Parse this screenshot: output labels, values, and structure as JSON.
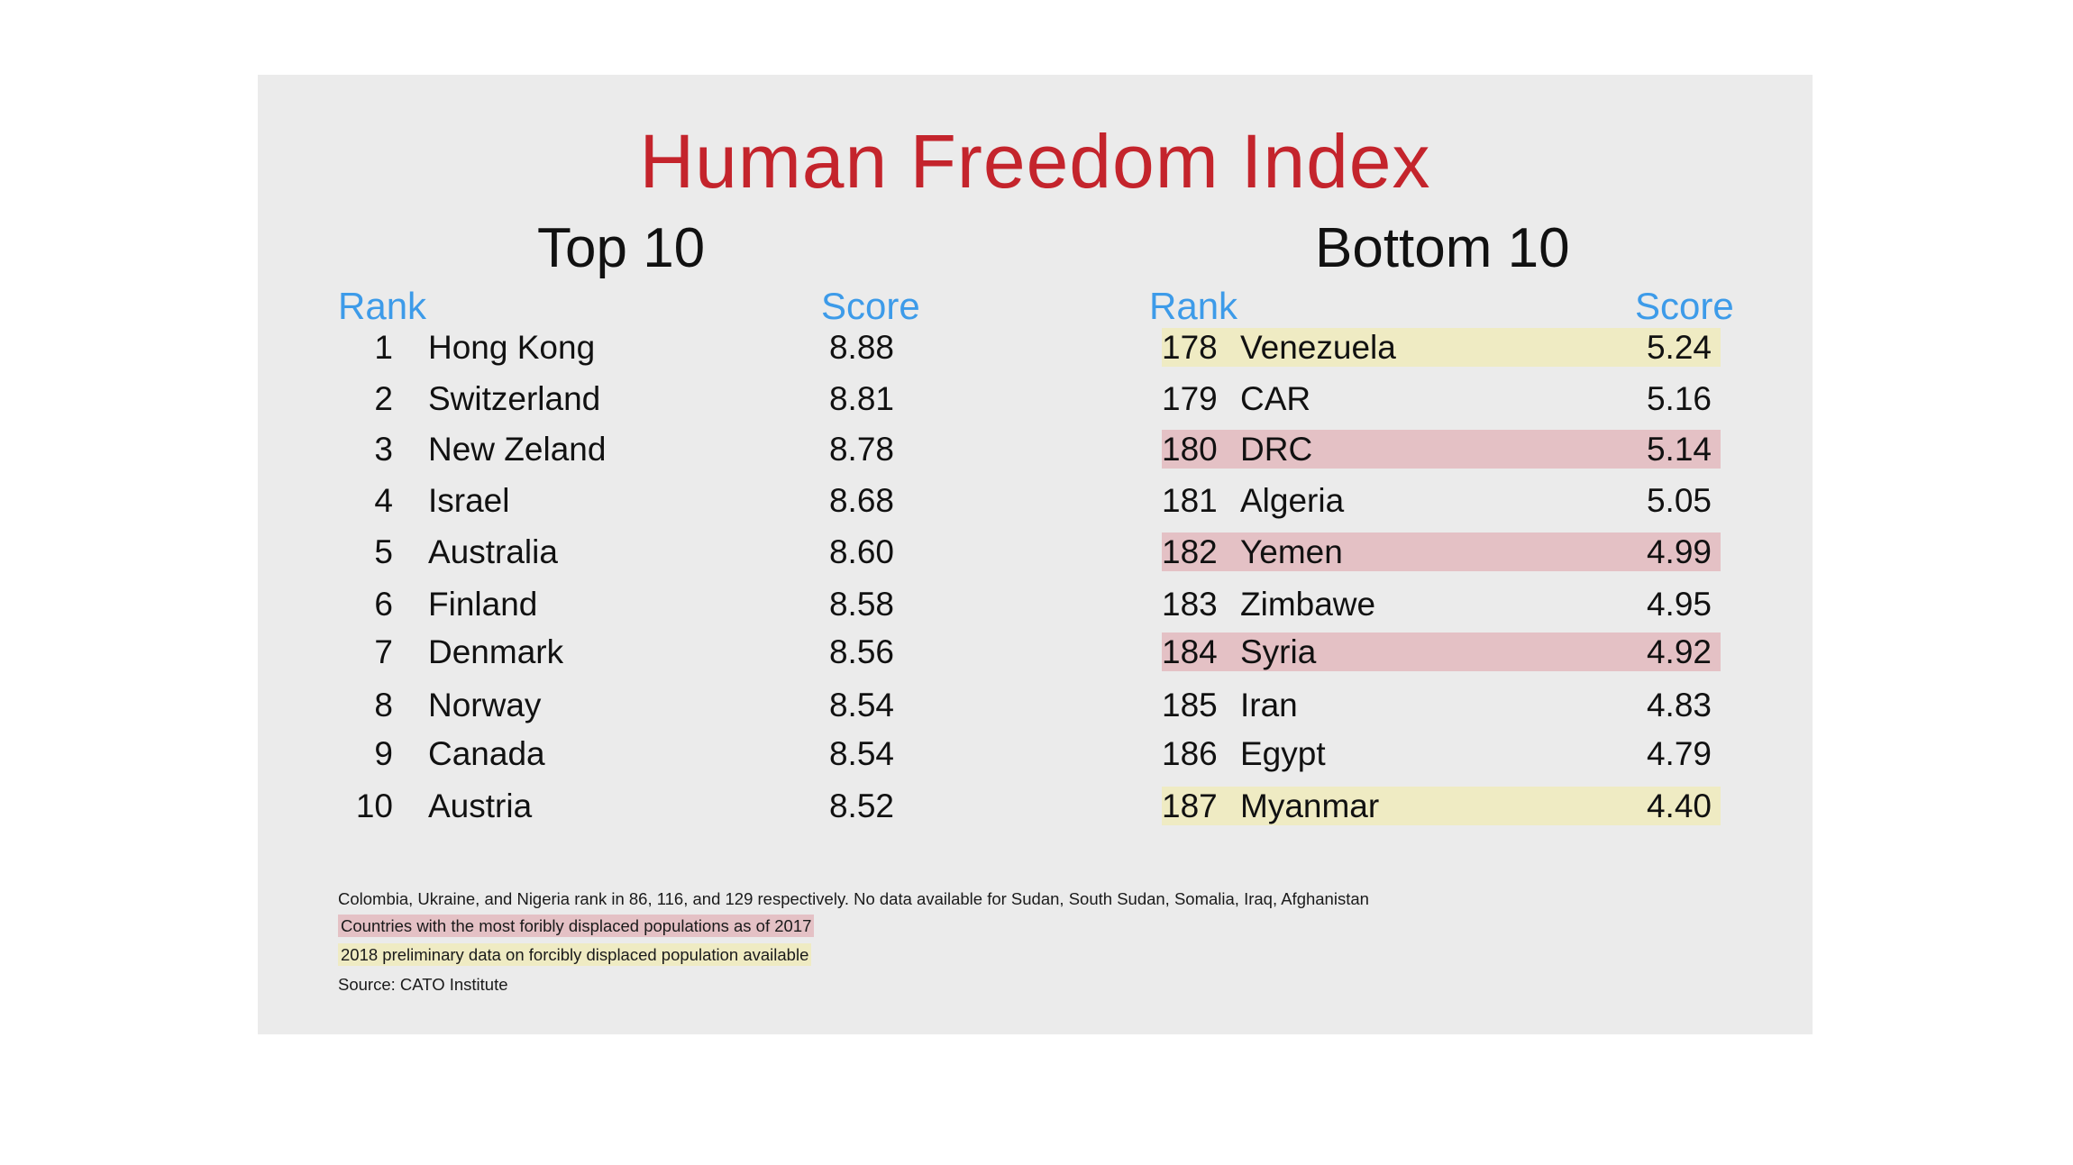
{
  "title": "Human Freedom Index",
  "top": {
    "heading": "Top 10",
    "rank_label": "Rank",
    "score_label": "Score",
    "rows": [
      {
        "rank": "1",
        "country": "Hong Kong",
        "score": "8.88"
      },
      {
        "rank": "2",
        "country": "Switzerland",
        "score": "8.81"
      },
      {
        "rank": "3",
        "country": "New Zeland",
        "score": "8.78"
      },
      {
        "rank": "4",
        "country": "Israel",
        "score": "8.68"
      },
      {
        "rank": "5",
        "country": "Australia",
        "score": "8.60"
      },
      {
        "rank": "6",
        "country": "Finland",
        "score": "8.58"
      },
      {
        "rank": "7",
        "country": "Denmark",
        "score": "8.56"
      },
      {
        "rank": "8",
        "country": "Norway",
        "score": "8.54"
      },
      {
        "rank": "9",
        "country": "Canada",
        "score": "8.54"
      },
      {
        "rank": "10",
        "country": "Austria",
        "score": "8.52"
      }
    ]
  },
  "bottom": {
    "heading": "Bottom 10",
    "rank_label": "Rank",
    "score_label": "Score",
    "rows": [
      {
        "rank": "178",
        "country": "Venezuela",
        "score": "5.24",
        "highlight": "yellow"
      },
      {
        "rank": "179",
        "country": "CAR",
        "score": "5.16",
        "highlight": "none"
      },
      {
        "rank": "180",
        "country": "DRC",
        "score": "5.14",
        "highlight": "red"
      },
      {
        "rank": "181",
        "country": "Algeria",
        "score": "5.05",
        "highlight": "none"
      },
      {
        "rank": "182",
        "country": "Yemen",
        "score": "4.99",
        "highlight": "red"
      },
      {
        "rank": "183",
        "country": "Zimbawe",
        "score": "4.95",
        "highlight": "none"
      },
      {
        "rank": "184",
        "country": "Syria",
        "score": "4.92",
        "highlight": "red"
      },
      {
        "rank": "185",
        "country": "Iran",
        "score": "4.83",
        "highlight": "none"
      },
      {
        "rank": "186",
        "country": "Egypt",
        "score": "4.79",
        "highlight": "none"
      },
      {
        "rank": "187",
        "country": "Myanmar",
        "score": "4.40",
        "highlight": "yellow"
      }
    ]
  },
  "notes": {
    "line1": "Colombia, Ukraine, and Nigeria rank in 86, 116, and 129 respectively. No data available for Sudan, South Sudan, Somalia, Iraq, Afghanistan",
    "legend_red": "Countries with the most foribly displaced populations as of 2017",
    "legend_yellow": "2018 preliminary data on forcibly displaced population available",
    "source": "Source: CATO Institute"
  },
  "colors": {
    "title": "#c4242c",
    "header": "#3d9be9",
    "highlight_red": "#e4c1c5",
    "highlight_yellow": "#efebc3",
    "card_background": "#ebebeb"
  }
}
